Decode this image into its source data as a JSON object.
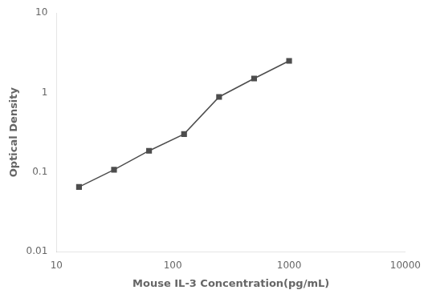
{
  "chart_data": {
    "type": "line",
    "x": [
      15.625,
      31.25,
      62.5,
      125,
      250,
      500,
      1000
    ],
    "values": [
      0.065,
      0.107,
      0.185,
      0.3,
      0.88,
      1.5,
      2.5
    ],
    "xlabel": "Mouse IL-3 Concentration(pg/mL)",
    "ylabel": "Optical Density",
    "xlim": [
      10,
      10000
    ],
    "ylim": [
      0.01,
      10
    ],
    "xticks": [
      10,
      100,
      1000,
      10000
    ],
    "yticks": [
      0.01,
      0.1,
      1,
      10
    ],
    "log": true,
    "grid": false,
    "color": "#4d4d4d",
    "marker": "square"
  }
}
